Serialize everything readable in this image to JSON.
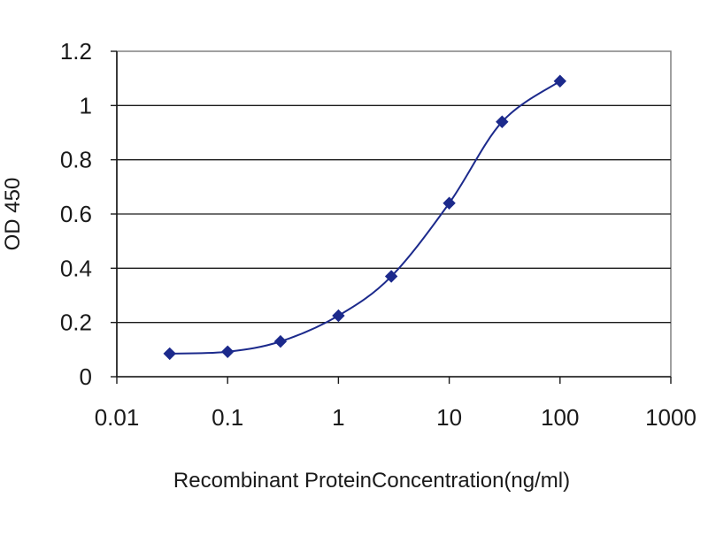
{
  "chart_data": {
    "type": "line",
    "title": "",
    "xlabel": "Recombinant ProteinConcentration(ng/ml)",
    "ylabel": "OD 450",
    "x_scale": "log",
    "xlim": [
      0.01,
      1000
    ],
    "ylim": [
      0,
      1.2
    ],
    "x_ticks": [
      0.01,
      0.1,
      1,
      10,
      100,
      1000
    ],
    "x_tick_labels": [
      "0.01",
      "0.1",
      "1",
      "10",
      "100",
      "1000"
    ],
    "y_ticks": [
      0,
      0.2,
      0.4,
      0.6,
      0.8,
      1,
      1.2
    ],
    "y_tick_labels": [
      "0",
      "0.2",
      "0.4",
      "0.6",
      "0.8",
      "1",
      "1.2"
    ],
    "grid": "horizontal",
    "legend": "none",
    "series": [
      {
        "color": "#1c2a8c",
        "marker": "diamond",
        "x": [
          0.03,
          0.1,
          0.3,
          1,
          3,
          10,
          30,
          100
        ],
        "y": [
          0.085,
          0.092,
          0.13,
          0.225,
          0.37,
          0.64,
          0.94,
          1.09
        ]
      }
    ]
  }
}
